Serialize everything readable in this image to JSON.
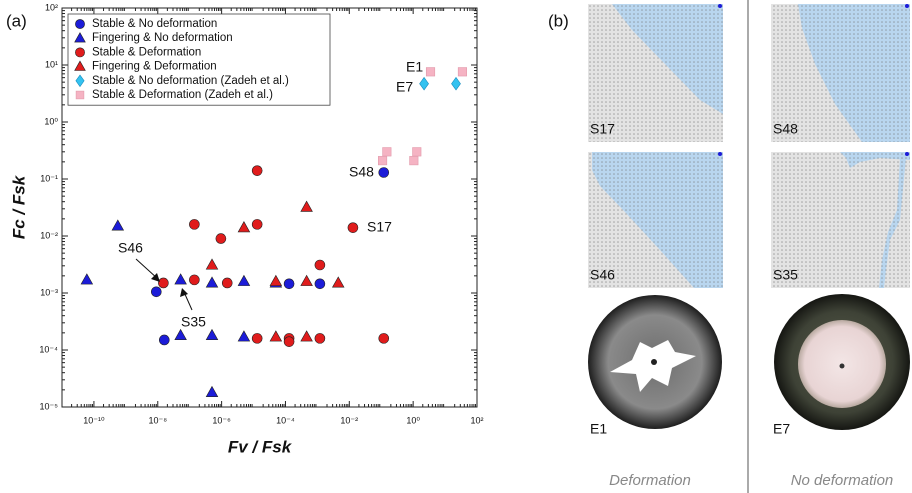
{
  "chart_data": {
    "type": "scatter",
    "panel_label": "(a)",
    "x_label": "Fv / Fsk",
    "y_label": "Fc / Fsk",
    "xscale": "log",
    "yscale": "log",
    "xlim": [
      1e-11,
      100
    ],
    "ylim": [
      1e-05,
      100
    ],
    "xticks": [
      {
        "value": 1e-10,
        "label": "10⁻¹⁰"
      },
      {
        "value": 1e-08,
        "label": "10⁻⁸"
      },
      {
        "value": 1e-06,
        "label": "10⁻⁶"
      },
      {
        "value": 0.0001,
        "label": "10⁻⁴"
      },
      {
        "value": 0.01,
        "label": "10⁻²"
      },
      {
        "value": 1,
        "label": "10⁰"
      },
      {
        "value": 100,
        "label": "10²"
      }
    ],
    "yticks": [
      {
        "value": 1e-05,
        "label": "10⁻⁵"
      },
      {
        "value": 0.0001,
        "label": "10⁻⁴"
      },
      {
        "value": 0.001,
        "label": "10⁻³"
      },
      {
        "value": 0.01,
        "label": "10⁻²"
      },
      {
        "value": 0.1,
        "label": "10⁻¹"
      },
      {
        "value": 1,
        "label": "10⁰"
      },
      {
        "value": 10,
        "label": "10¹"
      },
      {
        "value": 100,
        "label": "10²"
      }
    ],
    "legend": "upper left",
    "series": [
      {
        "name": "Stable & No deformation",
        "color": "#1c1cd8",
        "marker": "circle",
        "x": [
          9e-09,
          1.6e-08,
          0.00013,
          0.0012,
          0.12
        ],
        "values": [
          0.00105,
          0.00015,
          0.00145,
          0.00145,
          0.13
        ]
      },
      {
        "name": "Fingering & No deformation",
        "color": "#1c1cd8",
        "marker": "triangle",
        "x": [
          6e-11,
          5.6e-10,
          5.2e-08,
          5e-07,
          5e-06,
          5e-05,
          5.2e-08,
          5e-07,
          5e-06,
          5e-07
        ],
        "values": [
          0.0017,
          0.015,
          0.0017,
          0.0015,
          0.0016,
          0.0015,
          0.00018,
          0.00018,
          0.00017,
          1.8e-05
        ]
      },
      {
        "name": "Stable & Deformation",
        "color": "#e01c1c",
        "marker": "circle",
        "x": [
          1.5e-08,
          1.4e-07,
          1.4e-07,
          9.5e-07,
          1.5e-06,
          1.3e-05,
          1.3e-05,
          1.3e-05,
          0.00013,
          0.00013,
          0.0012,
          0.0012,
          0.013,
          0.12
        ],
        "values": [
          0.0015,
          0.016,
          0.0017,
          0.009,
          0.0015,
          0.14,
          0.016,
          0.00016,
          0.00016,
          0.00014,
          0.0031,
          0.00016,
          0.014,
          0.00016
        ]
      },
      {
        "name": "Fingering & Deformation",
        "color": "#e01c1c",
        "marker": "triangle",
        "x": [
          5e-07,
          5e-06,
          5e-05,
          5e-05,
          0.00046,
          0.00046,
          0.00046,
          0.0045
        ],
        "values": [
          0.0031,
          0.014,
          0.0016,
          0.00017,
          0.032,
          0.0016,
          0.00017,
          0.0015
        ]
      },
      {
        "name": "Stable & No deformation (Zadeh et al.)",
        "color": "#33c2f0",
        "marker": "diamond",
        "x": [
          2.2,
          22
        ],
        "values": [
          4.7,
          4.7
        ]
      },
      {
        "name": "Stable & Deformation (Zadeh et al.)",
        "color": "#f5b3c3",
        "marker": "square",
        "x": [
          3.5,
          35,
          0.11,
          0.15,
          1.05,
          1.3
        ],
        "values": [
          7.6,
          7.6,
          0.21,
          0.3,
          0.21,
          0.3
        ]
      }
    ],
    "annotations": [
      "E1",
      "E7",
      "S48",
      "S17",
      "S46",
      "S35"
    ]
  },
  "panel_b": {
    "label": "(b)",
    "images": [
      {
        "label": "S17"
      },
      {
        "label": "S48"
      },
      {
        "label": "S46"
      },
      {
        "label": "S35"
      },
      {
        "label": "E1"
      },
      {
        "label": "E7"
      }
    ],
    "captions": [
      "Deformation",
      "No deformation"
    ]
  }
}
